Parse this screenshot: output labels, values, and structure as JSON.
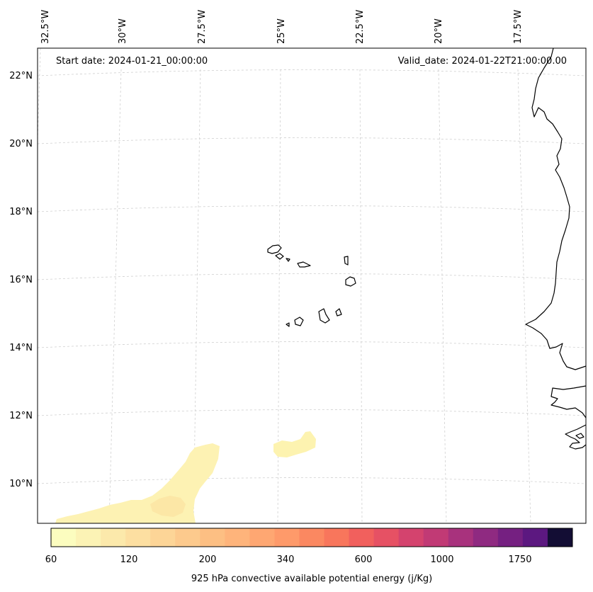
{
  "map": {
    "start_label": "Start date: 2024-01-21_00:00:00",
    "valid_label": "Valid_date: 2024-01-22T21:00:00.00",
    "longitude_labels": [
      "32.5°W",
      "30°W",
      "27.5°W",
      "25°W",
      "22.5°W",
      "20°W",
      "17.5°W"
    ],
    "latitude_labels": [
      "22°N",
      "20°N",
      "18°N",
      "16°N",
      "14°N",
      "12°N",
      "10°N"
    ],
    "colorbar": {
      "title": "925 hPa convective available potential energy (j/Kg)",
      "tick_labels": [
        "60",
        "120",
        "200",
        "340",
        "600",
        "1000",
        "1750"
      ],
      "colors": [
        "#fcfdbf",
        "#fcf3b5",
        "#fce9ab",
        "#fddfa1",
        "#fdd597",
        "#fdca8d",
        "#fdbf83",
        "#feb47b",
        "#fea772",
        "#fe9a6a",
        "#fb8861",
        "#f8765c",
        "#f1605d",
        "#e65164",
        "#d4436e",
        "#c13a75",
        "#a8327d",
        "#8f2a81",
        "#752081",
        "#5c1880",
        "#130d34"
      ]
    }
  }
}
